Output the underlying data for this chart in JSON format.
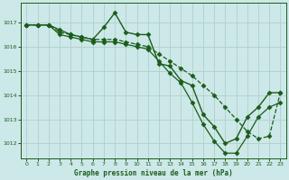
{
  "background_color": "#cde8e8",
  "grid_color": "#b0d0c8",
  "line_color": "#1a5c1a",
  "title": "Graphe pression niveau de la mer (hPa)",
  "xlim": [
    -0.5,
    23.5
  ],
  "ylim": [
    1011.4,
    1017.8
  ],
  "yticks": [
    1012,
    1013,
    1014,
    1015,
    1016,
    1017
  ],
  "xticks": [
    0,
    1,
    2,
    3,
    4,
    5,
    6,
    7,
    8,
    9,
    10,
    11,
    12,
    13,
    14,
    15,
    16,
    17,
    18,
    19,
    20,
    21,
    22,
    23
  ],
  "series": [
    {
      "x": [
        0,
        1,
        2,
        3,
        4,
        5,
        6,
        7,
        8,
        9,
        10,
        11,
        12,
        13,
        14,
        15,
        16,
        17,
        18,
        19,
        20,
        21,
        22,
        23
      ],
      "y": [
        1016.9,
        1016.9,
        1016.9,
        1016.7,
        1016.5,
        1016.4,
        1016.3,
        1016.8,
        1017.4,
        1016.6,
        1016.5,
        1016.5,
        1015.3,
        1015.2,
        1014.6,
        1014.4,
        1013.2,
        1012.7,
        1012.0,
        1012.2,
        1013.1,
        1013.5,
        1014.1,
        1014.1
      ],
      "style": "-",
      "marker": "D",
      "markersize": 2.5,
      "linewidth": 1.0
    },
    {
      "x": [
        0,
        1,
        2,
        3,
        4,
        5,
        6,
        7,
        8,
        9,
        10,
        11,
        12,
        13,
        14,
        15,
        16,
        17,
        18,
        19,
        20,
        21,
        22,
        23
      ],
      "y": [
        1016.9,
        1016.9,
        1016.9,
        1016.6,
        1016.5,
        1016.4,
        1016.3,
        1016.3,
        1016.3,
        1016.2,
        1016.1,
        1016.0,
        1015.7,
        1015.4,
        1015.1,
        1014.8,
        1014.4,
        1014.0,
        1013.5,
        1013.0,
        1012.5,
        1012.2,
        1012.3,
        1014.1
      ],
      "style": "--",
      "marker": "D",
      "markersize": 2.5,
      "linewidth": 0.9
    },
    {
      "x": [
        0,
        1,
        2,
        3,
        4,
        5,
        6,
        7,
        8,
        9,
        10,
        11,
        12,
        13,
        14,
        15,
        16,
        17,
        18,
        19,
        20,
        21,
        22,
        23
      ],
      "y": [
        1016.9,
        1016.9,
        1016.9,
        1016.5,
        1016.4,
        1016.3,
        1016.2,
        1016.2,
        1016.2,
        1016.1,
        1016.0,
        1015.9,
        1015.4,
        1014.9,
        1014.5,
        1013.7,
        1012.8,
        1012.1,
        1011.6,
        1011.6,
        1012.3,
        1013.1,
        1013.5,
        1013.7
      ],
      "style": "-",
      "marker": "D",
      "markersize": 2.5,
      "linewidth": 0.9
    }
  ]
}
